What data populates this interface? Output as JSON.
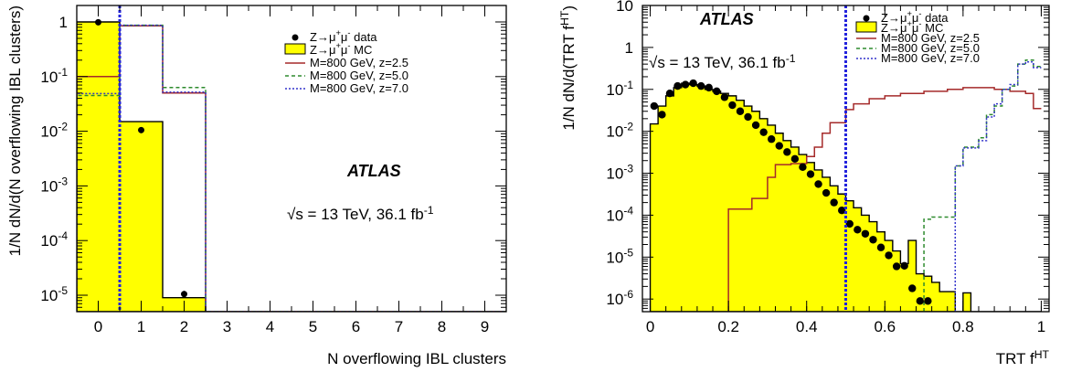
{
  "chart_data": [
    {
      "type": "histogram",
      "xlabel": "N overflowing IBL clusters",
      "ylabel": "1/N dN/d(N overflowing IBL clusters)",
      "xlim": [
        -0.5,
        9.5
      ],
      "ylim": [
        5e-06,
        2
      ],
      "yscale": "log",
      "x_ticks": [
        "0",
        "1",
        "2",
        "3",
        "4",
        "5",
        "6",
        "7",
        "8",
        "9"
      ],
      "y_ticks": [
        "1",
        "10^-1",
        "10^-2",
        "10^-3",
        "10^-4",
        "10^-5"
      ],
      "bin_edges": [
        -0.5,
        0.5,
        1.5,
        2.5,
        9.5
      ],
      "cut_value": 0.5,
      "atlas_label": "ATLAS",
      "energy_label": "√s = 13 TeV, 36.1 fb-1",
      "legend": [
        {
          "label": "Z→μ+μ- data",
          "style": "marker"
        },
        {
          "label": "Z→μ+μ- MC",
          "style": "fill"
        },
        {
          "label": "M=800 GeV, z=2.5",
          "style": "solid"
        },
        {
          "label": "M=800 GeV, z=5.0",
          "style": "dashed"
        },
        {
          "label": "M=800 GeV, z=7.0",
          "style": "dotted"
        }
      ],
      "data_points": [
        {
          "x": 0,
          "y": 0.985
        },
        {
          "x": 1,
          "y": 0.0105
        },
        {
          "x": 2,
          "y": 1.05e-05,
          "err": 1.5e-06
        }
      ],
      "mc_values": [
        1.0,
        0.015,
        9e-06,
        0
      ],
      "signals": [
        {
          "name": "M=800 GeV, z=2.5",
          "values": [
            0.1,
            0.85,
            0.05,
            0
          ]
        },
        {
          "name": "M=800 GeV, z=5.0",
          "values": [
            0.045,
            0.87,
            0.063,
            0
          ]
        },
        {
          "name": "M=800 GeV, z=7.0",
          "values": [
            0.049,
            0.87,
            0.052,
            0
          ]
        }
      ]
    },
    {
      "type": "histogram",
      "xlabel": "TRT fHT",
      "ylabel": "1/N dN/d(TRT fHT)",
      "xlim": [
        -0.02,
        1.02
      ],
      "ylim": [
        5e-07,
        10
      ],
      "yscale": "log",
      "x_ticks": [
        "0",
        "0.2",
        "0.4",
        "0.6",
        "0.8",
        "1"
      ],
      "y_ticks": [
        "10",
        "1",
        "10^-1",
        "10^-2",
        "10^-3",
        "10^-4",
        "10^-5",
        "10^-6"
      ],
      "cut_value": 0.5,
      "atlas_label": "ATLAS",
      "energy_label": "√s = 13 TeV, 36.1 fb-1",
      "legend": [
        {
          "label": "Z→μ+μ- data",
          "style": "marker"
        },
        {
          "label": "Z→μ+μ- MC",
          "style": "fill"
        },
        {
          "label": "M=800 GeV, z=2.5",
          "style": "solid"
        },
        {
          "label": "M=800 GeV, z=5.0",
          "style": "dashed"
        },
        {
          "label": "M=800 GeV, z=7.0",
          "style": "dotted"
        }
      ],
      "bin_edges": [
        0,
        0.02,
        0.04,
        0.06,
        0.08,
        0.1,
        0.12,
        0.14,
        0.16,
        0.18,
        0.2,
        0.22,
        0.24,
        0.26,
        0.28,
        0.3,
        0.32,
        0.34,
        0.36,
        0.38,
        0.4,
        0.42,
        0.44,
        0.46,
        0.48,
        0.5,
        0.52,
        0.54,
        0.56,
        0.58,
        0.6,
        0.62,
        0.64,
        0.66,
        0.68,
        0.7,
        0.72,
        0.74,
        0.76,
        0.78,
        0.8,
        0.82,
        0.84,
        0.86,
        0.88,
        0.9,
        0.92,
        0.94,
        0.96,
        0.98,
        1.0
      ],
      "mc_values": [
        0.015,
        0.04,
        0.07,
        0.11,
        0.14,
        0.13,
        0.12,
        0.1,
        0.09,
        0.08,
        0.07,
        0.055,
        0.04,
        0.03,
        0.02,
        0.014,
        0.009,
        0.006,
        0.0042,
        0.0028,
        0.0018,
        0.0012,
        0.0008,
        0.0005,
        0.00032,
        0.00022,
        0.00015,
        0.0001,
        7e-05,
        4e-05,
        2.5e-05,
        1.4e-05,
        7e-06,
        2.5e-05,
        4e-06,
        3.5e-06,
        2.5e-06,
        1.5e-06,
        1.5e-06,
        0,
        1.4e-06,
        0,
        0,
        0,
        0,
        0,
        0,
        0,
        0,
        0
      ],
      "data_points": [
        {
          "x": 0.01,
          "y": 0.04
        },
        {
          "x": 0.03,
          "y": 0.025
        },
        {
          "x": 0.05,
          "y": 0.08
        },
        {
          "x": 0.07,
          "y": 0.12
        },
        {
          "x": 0.09,
          "y": 0.13
        },
        {
          "x": 0.11,
          "y": 0.14
        },
        {
          "x": 0.13,
          "y": 0.12
        },
        {
          "x": 0.15,
          "y": 0.11
        },
        {
          "x": 0.17,
          "y": 0.09
        },
        {
          "x": 0.19,
          "y": 0.065
        },
        {
          "x": 0.21,
          "y": 0.042
        },
        {
          "x": 0.23,
          "y": 0.03
        },
        {
          "x": 0.25,
          "y": 0.022
        },
        {
          "x": 0.27,
          "y": 0.014
        },
        {
          "x": 0.29,
          "y": 0.0095
        },
        {
          "x": 0.31,
          "y": 0.0065
        },
        {
          "x": 0.33,
          "y": 0.0045
        },
        {
          "x": 0.35,
          "y": 0.0032
        },
        {
          "x": 0.37,
          "y": 0.0022
        },
        {
          "x": 0.39,
          "y": 0.0014
        },
        {
          "x": 0.41,
          "y": 0.00095
        },
        {
          "x": 0.43,
          "y": 0.00055
        },
        {
          "x": 0.45,
          "y": 0.00034
        },
        {
          "x": 0.47,
          "y": 0.0002
        },
        {
          "x": 0.49,
          "y": 0.00013
        },
        {
          "x": 0.51,
          "y": 6.2e-05
        },
        {
          "x": 0.53,
          "y": 4.5e-05
        },
        {
          "x": 0.55,
          "y": 3.6e-05
        },
        {
          "x": 0.57,
          "y": 2.6e-05
        },
        {
          "x": 0.59,
          "y": 1.7e-05
        },
        {
          "x": 0.61,
          "y": 1.1e-05
        },
        {
          "x": 0.63,
          "y": 6e-06
        },
        {
          "x": 0.65,
          "y": 6.2e-06
        },
        {
          "x": 0.67,
          "y": 1.8e-06
        },
        {
          "x": 0.69,
          "y": 9e-07
        },
        {
          "x": 0.71,
          "y": 9e-07
        }
      ],
      "signals": [
        {
          "name": "M=800 GeV, z=2.5",
          "bins": [
            [
              0.2,
              0.26,
              0.00014
            ],
            [
              0.26,
              0.3,
              0.00025
            ],
            [
              0.3,
              0.32,
              0.0008
            ],
            [
              0.32,
              0.36,
              0.0016
            ],
            [
              0.36,
              0.4,
              0.0017
            ],
            [
              0.4,
              0.42,
              0.0025
            ],
            [
              0.42,
              0.44,
              0.0042
            ],
            [
              0.44,
              0.46,
              0.009
            ],
            [
              0.46,
              0.5,
              0.016
            ],
            [
              0.5,
              0.52,
              0.033
            ],
            [
              0.52,
              0.56,
              0.045
            ],
            [
              0.56,
              0.6,
              0.06
            ],
            [
              0.6,
              0.64,
              0.07
            ],
            [
              0.64,
              0.7,
              0.08
            ],
            [
              0.7,
              0.76,
              0.09
            ],
            [
              0.76,
              0.8,
              0.1
            ],
            [
              0.8,
              0.84,
              0.11
            ],
            [
              0.84,
              0.88,
              0.11
            ],
            [
              0.88,
              0.92,
              0.1
            ],
            [
              0.92,
              0.96,
              0.09
            ],
            [
              0.96,
              0.98,
              0.08
            ],
            [
              0.98,
              1.0,
              0.035
            ]
          ]
        },
        {
          "name": "M=800 GeV, z=5.0",
          "bins": [
            [
              0.7,
              0.72,
              8e-05
            ],
            [
              0.72,
              0.76,
              9e-05
            ],
            [
              0.76,
              0.78,
              9e-05
            ],
            [
              0.78,
              0.8,
              0.0015
            ],
            [
              0.8,
              0.84,
              0.0042
            ],
            [
              0.84,
              0.86,
              0.007
            ],
            [
              0.86,
              0.88,
              0.025
            ],
            [
              0.88,
              0.9,
              0.04
            ],
            [
              0.9,
              0.92,
              0.1
            ],
            [
              0.92,
              0.94,
              0.12
            ],
            [
              0.94,
              0.96,
              0.4
            ],
            [
              0.96,
              0.98,
              0.5
            ],
            [
              0.98,
              1.0,
              0.35
            ]
          ]
        },
        {
          "name": "M=800 GeV, z=7.0",
          "bins": [
            [
              0.78,
              0.8,
              0.0015
            ],
            [
              0.8,
              0.84,
              0.004
            ],
            [
              0.84,
              0.86,
              0.006
            ],
            [
              0.86,
              0.88,
              0.022
            ],
            [
              0.88,
              0.9,
              0.045
            ],
            [
              0.9,
              0.92,
              0.1
            ],
            [
              0.92,
              0.94,
              0.13
            ],
            [
              0.94,
              0.96,
              0.4
            ],
            [
              0.96,
              0.98,
              0.45
            ],
            [
              0.98,
              1.0,
              0.33
            ]
          ]
        }
      ]
    }
  ]
}
